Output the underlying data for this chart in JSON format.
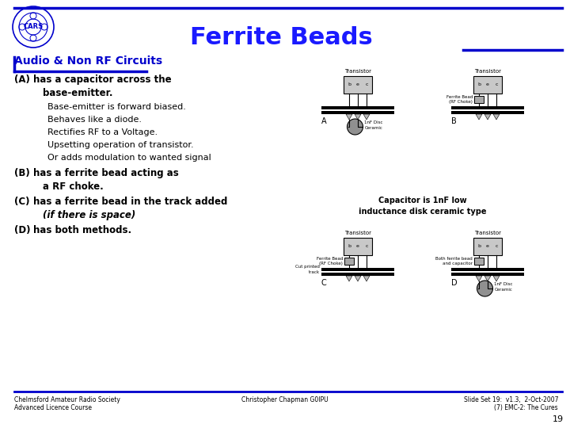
{
  "title": "Ferrite Beads",
  "title_color": "#1a1aff",
  "title_fontsize": 22,
  "bg_color": "#ffffff",
  "header_line_color": "#0000cc",
  "section_title": "Audio & Non RF Circuits",
  "section_title_color": "#0000cc",
  "section_title_fontsize": 10,
  "cap_note": "Capacitor is 1nF low\ninductance disk ceramic type",
  "footer_left1": "Chelmsford Amateur Radio Society",
  "footer_left2": "Advanced Licence Course",
  "footer_mid": "Christopher Chapman G0IPU",
  "footer_right1": "Slide Set 19:  v1.3,  2-Oct-2007",
  "footer_right2": "(7) EMC-2: The Cures",
  "page_num": "19",
  "transistor_color": "#c8c8c8",
  "cap_color": "#909090",
  "ferrite_color": "#a8a8a8"
}
